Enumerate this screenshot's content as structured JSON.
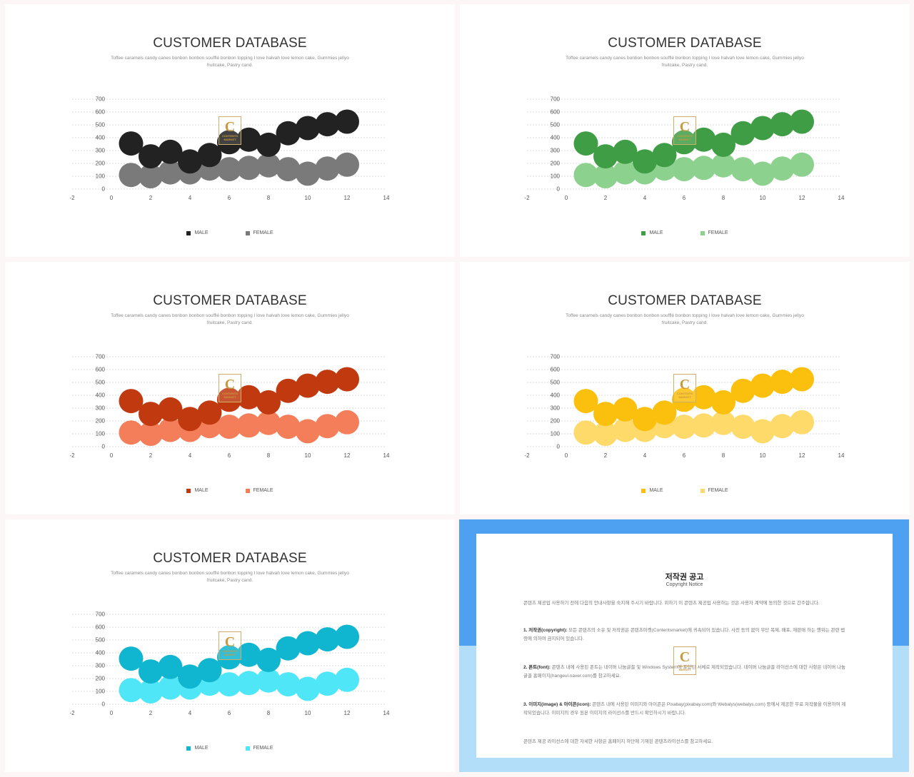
{
  "charts": [
    {
      "title": "CUSTOMER DATABASE",
      "subtitle": "Toffee caramels candy canes bonbon bonbon soufflé bonbon topping I love halvah love lemon cake, Gummies jellyo fruitcake, Pastry cand.",
      "colors": {
        "male": "#222222",
        "female": "#7a7a7a"
      }
    },
    {
      "title": "CUSTOMER DATABASE",
      "subtitle": "Toffee caramels candy canes bonbon bonbon soufflé bonbon topping I love halvah love lemon cake, Gummies jellyo fruitcake, Pastry cand.",
      "colors": {
        "male": "#3f9e45",
        "female": "#8dd18f"
      }
    },
    {
      "title": "CUSTOMER DATABASE",
      "subtitle": "Toffee caramels candy canes bonbon bonbon soufflé bonbon topping I love halvah love lemon cake, Gummies jellyo fruitcake, Pastry cand.",
      "colors": {
        "male": "#c0390f",
        "female": "#f47e5a"
      }
    },
    {
      "title": "CUSTOMER DATABASE",
      "subtitle": "Toffee caramels candy canes bonbon bonbon soufflé bonbon topping I love halvah love lemon cake, Gummies jellyo fruitcake, Pastry cand.",
      "colors": {
        "male": "#fbbf0e",
        "female": "#fdda6a"
      }
    },
    {
      "title": "CUSTOMER DATABASE",
      "subtitle": "Toffee caramels candy canes bonbon bonbon soufflé bonbon topping I love halvah love lemon cake, Gummies jellyo fruitcake, Pastry cand.",
      "colors": {
        "male": "#10b6d0",
        "female": "#4fe6f7"
      }
    }
  ],
  "chart_data": {
    "type": "scatter",
    "x": [
      1,
      2,
      3,
      4,
      5,
      6,
      7,
      8,
      9,
      10,
      11,
      12
    ],
    "series": [
      {
        "name": "MALE",
        "values": [
          355,
          255,
          290,
          215,
          265,
          365,
          385,
          345,
          435,
          475,
          505,
          525
        ]
      },
      {
        "name": "FEMALE",
        "values": [
          110,
          100,
          130,
          130,
          160,
          155,
          165,
          185,
          155,
          120,
          160,
          190
        ]
      }
    ],
    "xlim": [
      -2,
      14
    ],
    "xticks": [
      -2,
      0,
      2,
      4,
      6,
      8,
      10,
      12,
      14
    ],
    "ylim": [
      0,
      700
    ],
    "yticks": [
      0,
      100,
      200,
      300,
      400,
      500,
      600,
      700
    ],
    "grid": true,
    "legend": "bottom-center"
  },
  "legend_labels": {
    "male": "MALE",
    "female": "FEMALE"
  },
  "watermark": {
    "letter": "C",
    "line1": "CONTENTS",
    "line2": "MARKET"
  },
  "notice": {
    "title": "저작권 공고",
    "subtitle": "Copyright Notice",
    "p1": "콘텐츠 제공업 사용하기 전에 다음의 안내사항을 숙지해 주시기 바랍니다. 위하기 이 콘텐츠 제공업 사용하는 것은 사용자 계약에 동의한 것으로 간주합니다.",
    "p2_head": "1. 저작권(copyright):",
    "p2": "모든 콘텐츠의 소유 및 저작권은 콘텐츠마켓(Contentsmarket)에 귀속되어 있습니다. 사전 동의 없이 무단 복제, 배포, 재판매 하는 행위는 관련 법령에 의하여 금지되어 있습니다.",
    "p3_head": "2. 폰트(font):",
    "p3": "콘텐츠 내에 사용된 폰트는 네이버 나눔글꼴 및 Windows System에 포함된 서체로 제작되었습니다. 네이버 나눔글꼴 라이선스에 대한 사항은 네이버 나눔글꼴 홈페이지(hangeul.naver.com)를 참고하세요.",
    "p4_head": "3. 이미지(image) & 아이콘(icon):",
    "p4": "콘텐츠 내에 사용된 이미지와 아이콘은 Pixabay(pixabay.com)와 Webalys(webalys.com) 등에서 제공한 무료 저작물을 이용하여 제작되었습니다. 이미지의 경우 원본 이미지의 라이선스를 반드시 확인하시기 바랍니다.",
    "p5": "콘텐츠 제공 라이선스에 대한 자세한 사항은 홈페이지 하단에 기재된 콘텐츠라이선스를 참고하세요."
  }
}
